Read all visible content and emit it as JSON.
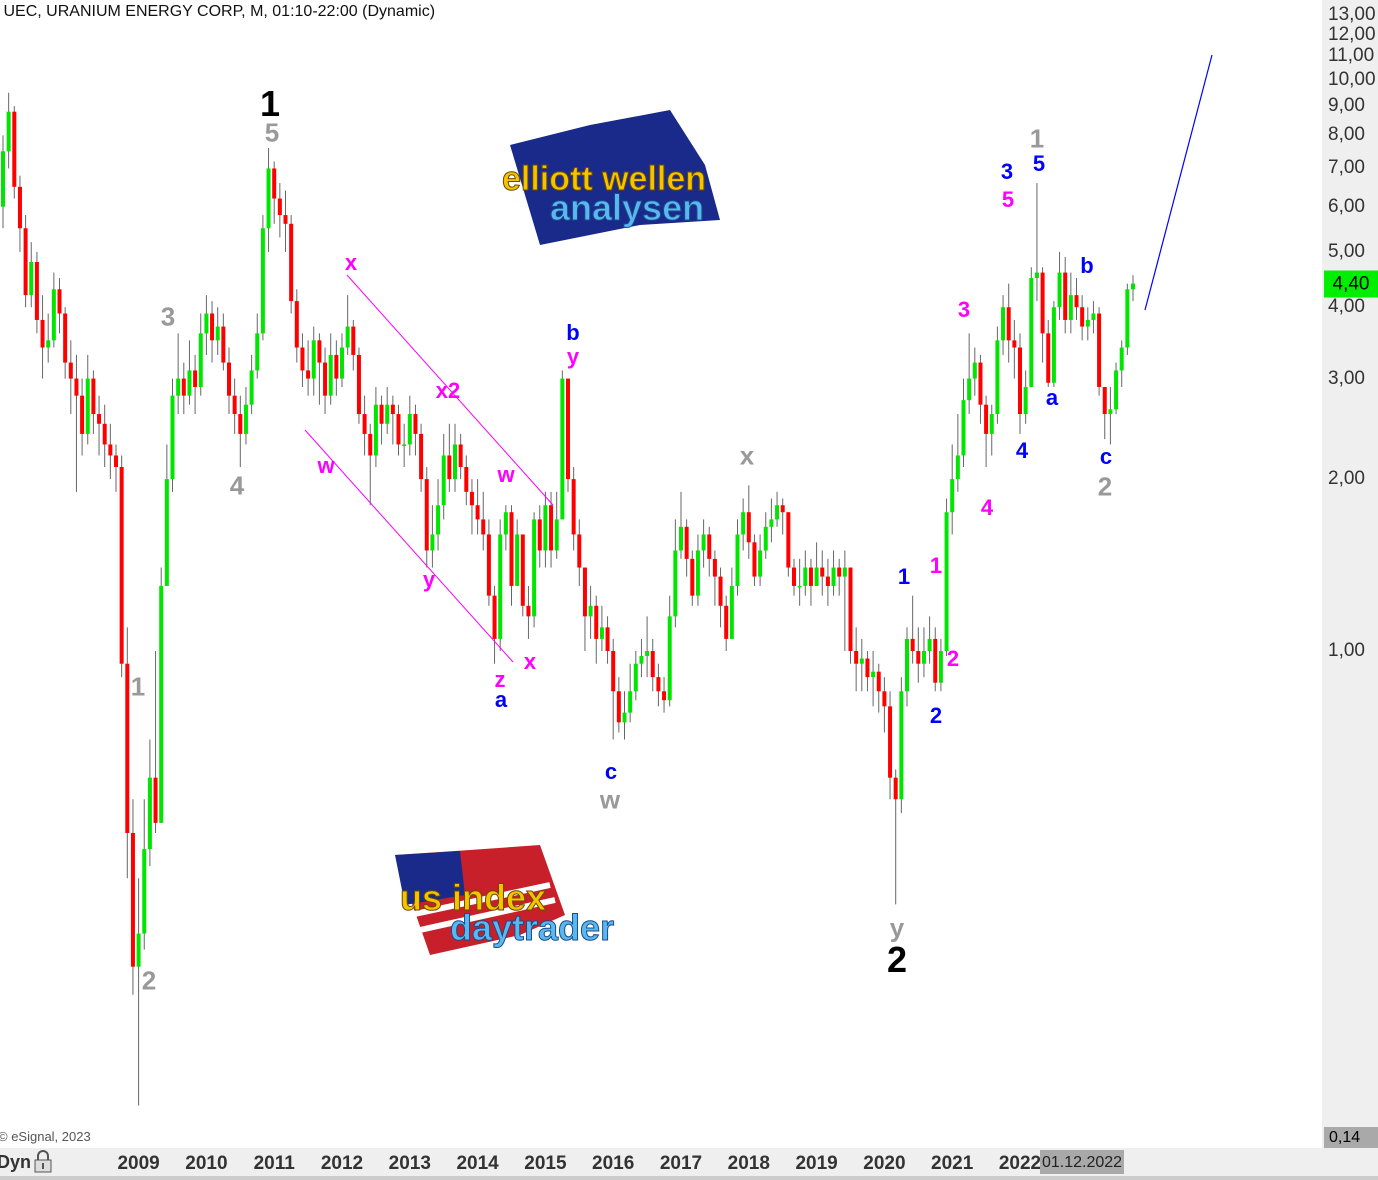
{
  "header": {
    "title": "' UEC, URANIUM ENERGY CORP, M, 01:10-22:00 (Dynamic)",
    "copyright": "© eSignal, 2023"
  },
  "colors": {
    "up": "#00e600",
    "down": "#ff0000",
    "wave_black": "#000000",
    "wave_gray": "#999999",
    "wave_magenta": "#ff00ff",
    "wave_blue": "#0000ff",
    "last_price_bg": "#00ee00"
  },
  "chart_data": {
    "type": "candlestick",
    "scale": "log",
    "ylim": [
      0.14,
      13.5
    ],
    "grid": false,
    "start": "2007-01",
    "interval": "monthly",
    "first_open": 6.0,
    "close": [
      7.5,
      8.8,
      6.5,
      5.5,
      4.2,
      4.8,
      3.8,
      3.4,
      3.5,
      4.3,
      3.9,
      3.2,
      3.0,
      2.8,
      2.4,
      3.0,
      2.6,
      2.5,
      2.3,
      2.2,
      2.1,
      0.95,
      0.48,
      0.28,
      0.32,
      0.45,
      0.6,
      0.5,
      1.3,
      2.0,
      2.8,
      3.0,
      2.8,
      3.1,
      2.9,
      3.6,
      3.9,
      3.5,
      3.7,
      3.2,
      2.8,
      2.6,
      2.4,
      2.7,
      3.1,
      3.6,
      5.5,
      7.0,
      6.2,
      5.8,
      5.6,
      4.1,
      3.4,
      3.1,
      3.0,
      3.5,
      3.2,
      2.8,
      3.3,
      3.0,
      3.4,
      3.7,
      3.3,
      2.6,
      2.4,
      2.2,
      2.7,
      2.5,
      2.7,
      2.6,
      2.3,
      2.3,
      2.6,
      2.4,
      2.0,
      1.5,
      1.6,
      1.8,
      2.2,
      2.0,
      2.3,
      2.1,
      1.9,
      1.8,
      1.7,
      1.6,
      1.25,
      1.05,
      1.6,
      1.75,
      1.3,
      1.6,
      1.2,
      1.15,
      1.7,
      1.5,
      1.8,
      1.5,
      1.7,
      3.0,
      2.0,
      1.6,
      1.4,
      1.15,
      1.2,
      1.05,
      1.1,
      1.0,
      0.85,
      0.75,
      0.78,
      0.85,
      0.95,
      0.98,
      1.0,
      0.9,
      0.85,
      0.82,
      1.15,
      1.5,
      1.65,
      1.45,
      1.25,
      1.5,
      1.6,
      1.45,
      1.35,
      1.2,
      1.05,
      1.3,
      1.6,
      1.75,
      1.55,
      1.35,
      1.5,
      1.65,
      1.7,
      1.8,
      1.75,
      1.4,
      1.3,
      1.3,
      1.4,
      1.3,
      1.4,
      1.35,
      1.3,
      1.4,
      1.35,
      1.4,
      1.0,
      0.95,
      0.97,
      0.9,
      0.92,
      0.85,
      0.8,
      0.6,
      0.55,
      0.85,
      1.05,
      1.0,
      0.95,
      1.0,
      1.05,
      0.88,
      1.0,
      1.75,
      2.0,
      2.2,
      2.75,
      3.0,
      3.2,
      2.7,
      2.4,
      2.6,
      3.5,
      4.0,
      3.5,
      3.4,
      2.6,
      2.9,
      4.5,
      4.6,
      3.6,
      2.95,
      4.0,
      4.6,
      3.8,
      4.2,
      4.0,
      3.7,
      3.8,
      3.9,
      2.9,
      2.6,
      2.65,
      3.1,
      3.4,
      4.3,
      4.4
    ],
    "high": [
      8.0,
      9.5,
      9.0,
      6.8,
      5.8,
      5.2,
      5.0,
      4.2,
      3.9,
      4.6,
      4.5,
      4.0,
      3.5,
      3.3,
      3.0,
      3.3,
      3.1,
      2.8,
      2.7,
      2.5,
      2.3,
      2.2,
      1.1,
      0.55,
      0.4,
      0.55,
      0.7,
      1.0,
      1.4,
      2.3,
      3.0,
      3.6,
      3.2,
      3.5,
      3.3,
      3.9,
      4.2,
      4.1,
      4.0,
      3.9,
      3.4,
      3.0,
      2.8,
      2.9,
      3.3,
      3.9,
      5.8,
      7.6,
      7.2,
      6.6,
      6.4,
      5.8,
      4.3,
      3.6,
      3.5,
      3.7,
      3.6,
      3.4,
      3.6,
      3.5,
      3.6,
      4.2,
      3.8,
      3.4,
      2.8,
      2.5,
      2.9,
      2.8,
      2.9,
      2.8,
      2.7,
      2.5,
      2.8,
      2.7,
      2.5,
      2.1,
      1.8,
      2.0,
      2.4,
      2.5,
      2.5,
      2.4,
      2.2,
      2.0,
      2.0,
      1.9,
      1.7,
      1.3,
      1.7,
      1.8,
      1.8,
      1.7,
      1.6,
      1.3,
      1.75,
      1.8,
      1.9,
      1.9,
      1.9,
      3.1,
      3.0,
      2.1,
      1.7,
      1.4,
      1.3,
      1.25,
      1.2,
      1.15,
      1.05,
      0.9,
      0.85,
      0.95,
      1.0,
      1.05,
      1.15,
      1.05,
      0.95,
      0.9,
      1.25,
      1.7,
      1.9,
      1.7,
      1.5,
      1.6,
      1.7,
      1.65,
      1.5,
      1.4,
      1.25,
      1.4,
      1.7,
      1.85,
      1.95,
      1.6,
      1.6,
      1.75,
      1.85,
      1.9,
      1.85,
      1.75,
      1.45,
      1.45,
      1.5,
      1.45,
      1.55,
      1.5,
      1.45,
      1.5,
      1.45,
      1.5,
      1.4,
      1.1,
      1.05,
      1.0,
      1.0,
      0.95,
      0.9,
      0.85,
      0.62,
      0.9,
      1.1,
      1.25,
      1.1,
      1.1,
      1.15,
      1.1,
      1.05,
      1.85,
      2.3,
      2.6,
      3.0,
      3.6,
      3.4,
      3.3,
      2.8,
      2.7,
      3.7,
      4.2,
      4.4,
      3.8,
      3.6,
      3.1,
      4.7,
      6.6,
      4.7,
      3.8,
      4.1,
      5.0,
      4.9,
      4.6,
      4.5,
      4.2,
      4.0,
      4.1,
      4.0,
      2.9,
      2.9,
      3.2,
      3.5,
      4.4,
      4.55
    ],
    "low": [
      5.5,
      7.0,
      6.2,
      5.0,
      4.0,
      4.0,
      3.6,
      3.0,
      3.2,
      3.4,
      3.6,
      3.0,
      2.6,
      1.9,
      2.2,
      2.3,
      2.4,
      2.2,
      2.1,
      2.0,
      1.9,
      0.9,
      0.4,
      0.25,
      0.16,
      0.3,
      0.42,
      0.48,
      0.5,
      1.3,
      1.9,
      2.6,
      2.6,
      2.7,
      2.6,
      2.8,
      3.3,
      3.2,
      3.3,
      3.1,
      2.6,
      2.4,
      2.1,
      2.3,
      2.6,
      3.0,
      3.5,
      5.0,
      5.6,
      5.3,
      5.0,
      3.9,
      3.2,
      2.9,
      2.8,
      2.8,
      2.7,
      2.6,
      2.7,
      2.8,
      2.9,
      3.3,
      3.1,
      2.5,
      2.2,
      1.8,
      2.1,
      2.3,
      2.4,
      2.3,
      2.2,
      2.1,
      2.2,
      2.2,
      1.9,
      1.4,
      1.4,
      1.5,
      1.7,
      1.9,
      1.9,
      2.0,
      1.8,
      1.6,
      1.6,
      1.5,
      1.2,
      0.95,
      1.0,
      1.5,
      1.2,
      1.3,
      1.15,
      1.05,
      1.1,
      1.4,
      1.4,
      1.4,
      1.45,
      1.7,
      1.9,
      1.5,
      1.3,
      1.0,
      1.05,
      0.95,
      1.0,
      0.95,
      0.7,
      0.72,
      0.7,
      0.75,
      0.82,
      0.9,
      0.9,
      0.85,
      0.8,
      0.78,
      0.8,
      1.1,
      1.45,
      1.35,
      1.2,
      1.2,
      1.4,
      1.35,
      1.2,
      1.1,
      1.0,
      1.05,
      1.25,
      1.5,
      1.45,
      1.3,
      1.3,
      1.45,
      1.55,
      1.65,
      1.6,
      1.35,
      1.25,
      1.2,
      1.25,
      1.2,
      1.3,
      1.25,
      1.2,
      1.25,
      1.25,
      1.0,
      0.95,
      0.85,
      0.85,
      0.85,
      0.8,
      0.78,
      0.72,
      0.55,
      0.36,
      0.52,
      0.8,
      0.95,
      0.88,
      0.9,
      0.95,
      0.85,
      0.85,
      0.98,
      1.6,
      1.9,
      2.1,
      2.6,
      2.8,
      2.5,
      2.1,
      2.2,
      2.5,
      3.3,
      3.2,
      3.0,
      2.4,
      2.5,
      2.9,
      4.1,
      3.2,
      2.9,
      2.9,
      3.8,
      3.6,
      3.6,
      3.8,
      3.5,
      3.5,
      3.6,
      2.8,
      2.35,
      2.3,
      2.6,
      2.9,
      3.3,
      4.1
    ],
    "y_ticks": [
      {
        "v": 13,
        "t": "13,00"
      },
      {
        "v": 12,
        "t": "12,00"
      },
      {
        "v": 11,
        "t": "11,00"
      },
      {
        "v": 10,
        "t": "10,00"
      },
      {
        "v": 9,
        "t": "9,00"
      },
      {
        "v": 8,
        "t": "8,00"
      },
      {
        "v": 7,
        "t": "7,00"
      },
      {
        "v": 6,
        "t": "6,00"
      },
      {
        "v": 5,
        "t": "5,00"
      },
      {
        "v": 4,
        "t": "4,00"
      },
      {
        "v": 3,
        "t": "3,00"
      },
      {
        "v": 2,
        "t": "2,00"
      },
      {
        "v": 1,
        "t": "1,00"
      }
    ],
    "last_price": {
      "v": 4.4,
      "t": "4,40"
    },
    "min_label": "0,14",
    "x_ticks": [
      "2009",
      "2010",
      "2011",
      "2012",
      "2013",
      "2014",
      "2015",
      "2016",
      "2017",
      "2018",
      "2019",
      "2020",
      "2021",
      "2022"
    ],
    "cursor_date": "01.12.2022",
    "annotations": [
      "1",
      "5",
      "3",
      "4",
      "1",
      "2",
      "x",
      "w",
      "x2",
      "w",
      "y",
      "x",
      "z",
      "a",
      "b",
      "y",
      "c",
      "w",
      "x",
      "1",
      "2",
      "y",
      "2",
      "1",
      "2",
      "1",
      "2",
      "3",
      "4",
      "5",
      "3",
      "5",
      "4",
      "a",
      "b",
      "c",
      "1",
      "2"
    ]
  },
  "footer": {
    "dyn_label": "Dyn"
  },
  "logos": {
    "logo1": "elliott wellen analysen",
    "logo2": "us index daytrader"
  }
}
